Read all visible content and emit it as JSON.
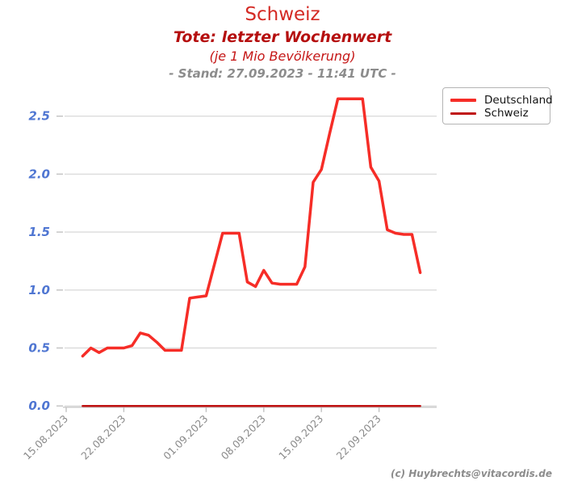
{
  "chart_data": {
    "type": "line",
    "title": "Schweiz",
    "subtitle": "Tote: letzter Wochenwert",
    "subtitle2": "(je 1 Mio Bevölkerung)",
    "stand": "- Stand: 27.09.2023 - 11:41 UTC -",
    "xlabel": "",
    "ylabel": "",
    "ylim": [
      0,
      2.78
    ],
    "yticks": [
      0,
      0.5,
      1.0,
      1.5,
      2.0,
      2.5
    ],
    "xticks": [
      "15.08.2023",
      "22.08.2023",
      "01.09.2023",
      "08.09.2023",
      "15.09.2023",
      "22.09.2023"
    ],
    "grid": "horizontal",
    "legend_position": "upper-right",
    "ytick_color": "#4f76d2",
    "xtick_color": "#8a8a8a",
    "grid_color": "#dcdcdc",
    "axis_color": "#c8c8c8",
    "series": [
      {
        "name": "Deutschland",
        "color": "#f62d27",
        "width": 3.5,
        "points": [
          [
            "17.08",
            0.43
          ],
          [
            "18.08",
            0.5
          ],
          [
            "19.08",
            0.46
          ],
          [
            "20.08",
            0.5
          ],
          [
            "21.08",
            0.5
          ],
          [
            "22.08",
            0.5
          ],
          [
            "23.08",
            0.52
          ],
          [
            "24.08",
            0.63
          ],
          [
            "25.08",
            0.61
          ],
          [
            "26.08",
            0.55
          ],
          [
            "27.08",
            0.48
          ],
          [
            "28.08",
            0.48
          ],
          [
            "29.08",
            0.48
          ],
          [
            "30.08",
            0.93
          ],
          [
            "31.08",
            0.94
          ],
          [
            "01.09",
            0.95
          ],
          [
            "02.09",
            1.22
          ],
          [
            "03.09",
            1.49
          ],
          [
            "04.09",
            1.49
          ],
          [
            "05.09",
            1.49
          ],
          [
            "06.09",
            1.07
          ],
          [
            "07.09",
            1.03
          ],
          [
            "08.09",
            1.17
          ],
          [
            "09.09",
            1.06
          ],
          [
            "10.09",
            1.05
          ],
          [
            "11.09",
            1.05
          ],
          [
            "12.09",
            1.05
          ],
          [
            "13.09",
            1.2
          ],
          [
            "14.09",
            1.93
          ],
          [
            "15.09",
            2.04
          ],
          [
            "16.09",
            2.35
          ],
          [
            "17.09",
            2.65
          ],
          [
            "18.09",
            2.65
          ],
          [
            "19.09",
            2.65
          ],
          [
            "20.09",
            2.65
          ],
          [
            "21.09",
            2.06
          ],
          [
            "22.09",
            1.94
          ],
          [
            "23.09",
            1.52
          ],
          [
            "24.09",
            1.49
          ],
          [
            "25.09",
            1.48
          ],
          [
            "26.09",
            1.48
          ],
          [
            "27.09",
            1.15
          ]
        ]
      },
      {
        "name": "Schweiz",
        "color": "#bf1111",
        "width": 2.5,
        "points": [
          [
            "17.08",
            0.0
          ],
          [
            "27.09",
            0.0
          ]
        ]
      }
    ],
    "footer": "(c) Huybrechts@vitacordis.de"
  }
}
